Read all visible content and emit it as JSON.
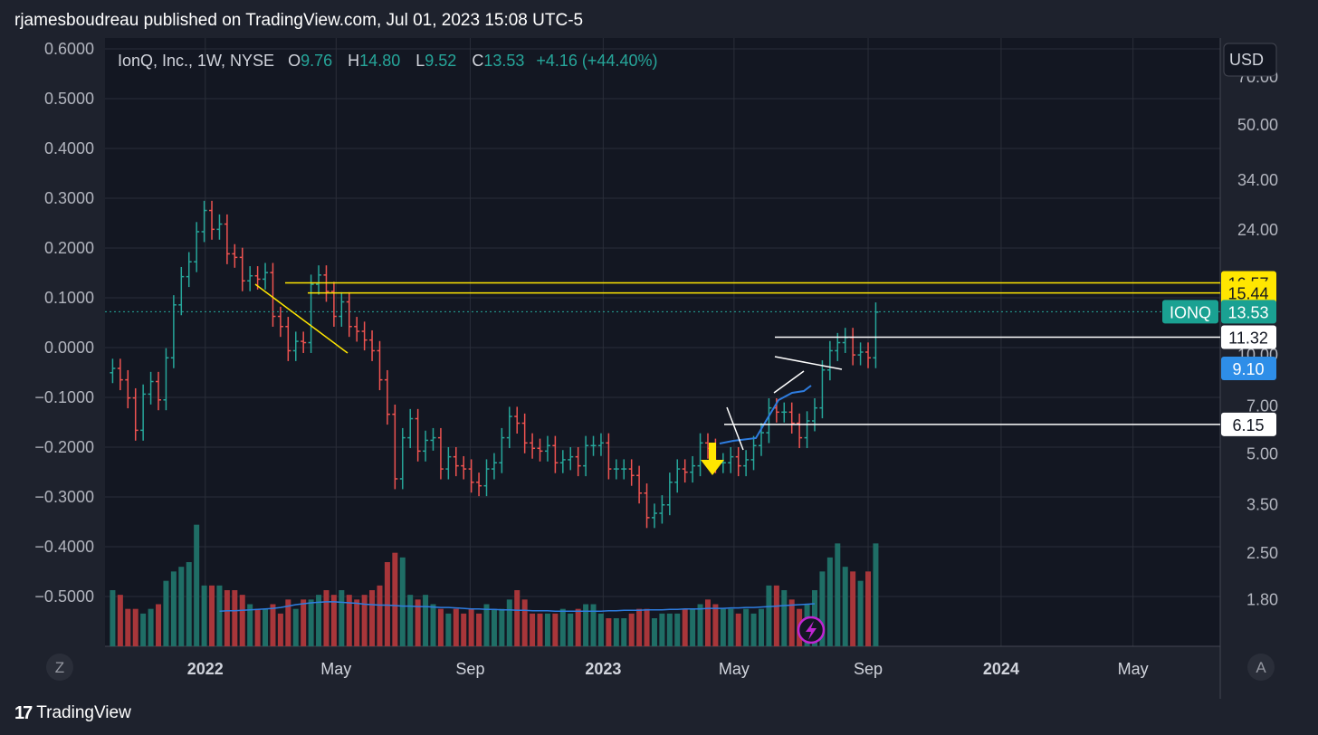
{
  "header": {
    "publish_text": "rjamesboudreau published on TradingView.com, Jul 01, 2023 15:08 UTC-5"
  },
  "legend": {
    "symbol": "IonQ, Inc., 1W, NYSE",
    "o_label": "O",
    "o_value": "9.76",
    "h_label": "H",
    "h_value": "14.80",
    "l_label": "L",
    "l_value": "9.52",
    "c_label": "C",
    "c_value": "13.53",
    "change": "+4.16 (+44.40%)"
  },
  "currency": "USD",
  "corner_left": "Z",
  "corner_right": "A",
  "footer": {
    "brand": "TradingView"
  },
  "colors": {
    "up": "#26a69a",
    "down": "#ef5350",
    "vol_up": "#1f6e66",
    "vol_down": "#a8363a",
    "ma": "#2e7de0",
    "yellow": "#ffe600",
    "white": "#ffffff",
    "teal_label": "#1aa192",
    "blue_label": "#2e8ee8",
    "lightning": "#c026d3"
  },
  "chart_data": {
    "type": "candlestick",
    "timeframe": "1W",
    "left_axis": {
      "ticks": [
        "0.6000",
        "0.5000",
        "0.4000",
        "0.3000",
        "0.2000",
        "0.1000",
        "0.0000",
        "−0.1000",
        "−0.2000",
        "−0.3000",
        "−0.4000",
        "−0.5000"
      ]
    },
    "right_axis": {
      "scale": "log",
      "ticks": [
        "70.00",
        "50.00",
        "34.00",
        "24.00",
        "10.00",
        "7.00",
        "5.00",
        "3.50",
        "2.50",
        "1.80"
      ]
    },
    "x_labels": [
      {
        "label": "2022",
        "bold": true,
        "date": "2022-01-01"
      },
      {
        "label": "May",
        "bold": false,
        "date": "2022-05-01"
      },
      {
        "label": "Sep",
        "bold": false,
        "date": "2022-09-01"
      },
      {
        "label": "2023",
        "bold": true,
        "date": "2023-01-01"
      },
      {
        "label": "May",
        "bold": false,
        "date": "2023-05-01"
      },
      {
        "label": "Sep",
        "bold": false,
        "date": "2023-09-01"
      },
      {
        "label": "2024",
        "bold": true,
        "date": "2024-01-01"
      },
      {
        "label": "May",
        "bold": false,
        "date": "2024-05-01"
      }
    ],
    "price_labels": [
      {
        "value": "16.57",
        "price": 16.57,
        "style": "yellow"
      },
      {
        "value": "15.44",
        "price": 15.44,
        "style": "yellow"
      },
      {
        "value": "13.53",
        "price": 13.53,
        "style": "teal",
        "tag": "IONQ"
      },
      {
        "value": "11.32",
        "price": 11.32,
        "style": "white"
      },
      {
        "value": "9.10",
        "price": 9.1,
        "style": "blue"
      },
      {
        "value": "6.15",
        "price": 6.15,
        "style": "white"
      }
    ],
    "last_close": 13.53,
    "candles_close": [
      9.1,
      8.4,
      7.4,
      5.9,
      7.6,
      8.3,
      7.3,
      9.8,
      14.2,
      17.3,
      19.2,
      23.7,
      27.5,
      24.1,
      25.0,
      20.3,
      19.8,
      16.8,
      17.4,
      17.0,
      17.8,
      13.1,
      12.2,
      10.3,
      11.0,
      10.9,
      16.4,
      17.5,
      15.6,
      13.1,
      14.5,
      12.2,
      11.8,
      11.1,
      10.3,
      8.4,
      6.6,
      4.2,
      5.6,
      6.4,
      5.1,
      5.5,
      5.6,
      4.5,
      4.9,
      4.6,
      4.5,
      4.1,
      4.0,
      4.5,
      4.7,
      5.6,
      6.5,
      6.2,
      5.4,
      5.2,
      5.1,
      5.3,
      4.7,
      4.8,
      4.9,
      4.6,
      5.3,
      5.3,
      5.4,
      4.5,
      4.5,
      4.5,
      4.3,
      3.8,
      3.2,
      3.3,
      3.5,
      4.1,
      4.5,
      4.4,
      4.6,
      5.4,
      5.2,
      4.7,
      4.7,
      4.9,
      4.6,
      4.8,
      5.3,
      5.8,
      6.9,
      6.7,
      6.7,
      6.2,
      5.6,
      6.3,
      6.9,
      9.0,
      10.3,
      10.9,
      11.3,
      10.0,
      10.2,
      9.8,
      13.5
    ],
    "volume": [
      12,
      11,
      8,
      8,
      7,
      8,
      9,
      14,
      16,
      17,
      18,
      26,
      13,
      13,
      13,
      12,
      12,
      11,
      9,
      8,
      8,
      9,
      7,
      10,
      8,
      10,
      10,
      11,
      12,
      11,
      12,
      11,
      10,
      11,
      12,
      13,
      18,
      20,
      19,
      11,
      10,
      11,
      9,
      8,
      7,
      8,
      7,
      8,
      7,
      9,
      8,
      8,
      10,
      12,
      10,
      7,
      7,
      7,
      7,
      8,
      7,
      8,
      9,
      9,
      7,
      6,
      6,
      6,
      7,
      8,
      8,
      6,
      7,
      7,
      7,
      8,
      8,
      9,
      10,
      9,
      8,
      8,
      7,
      8,
      7,
      8,
      13,
      13,
      12,
      10,
      8,
      9,
      12,
      16,
      19,
      22,
      17,
      16,
      14,
      16,
      22
    ],
    "ma_volume": [
      7.5,
      7.6,
      7.6,
      7.7,
      7.8,
      7.9,
      8.0,
      8.1,
      8.3,
      8.6,
      8.9,
      9.1,
      9.3,
      9.4,
      9.5,
      9.5,
      9.4,
      9.3,
      9.2,
      9.0,
      8.9,
      8.8,
      8.8,
      8.7,
      8.6,
      8.6,
      8.5,
      8.5,
      8.4,
      8.3,
      8.3,
      8.2,
      8.1,
      8.0,
      8.0,
      7.9,
      7.9,
      7.8,
      7.8,
      7.7,
      7.7,
      7.6,
      7.6,
      7.6,
      7.5,
      7.5,
      7.5,
      7.5,
      7.5,
      7.5,
      7.5,
      7.6,
      7.6,
      7.7,
      7.7,
      7.7,
      7.8,
      7.8,
      7.8,
      7.9,
      7.9,
      8.0,
      8.0,
      8.0,
      8.1,
      8.1,
      8.1,
      8.2,
      8.2,
      8.3,
      8.3,
      8.4,
      8.5,
      8.6,
      8.7,
      8.8,
      8.9,
      9.0,
      9.1,
      9.2,
      9.3,
      9.4,
      9.5,
      9.6,
      9.7,
      9.8,
      9.9,
      10.0,
      10.1,
      10.2,
      10.3,
      10.4,
      10.5,
      10.6,
      10.7,
      10.8,
      10.9,
      11.0,
      11.1,
      11.2,
      11.3
    ]
  }
}
